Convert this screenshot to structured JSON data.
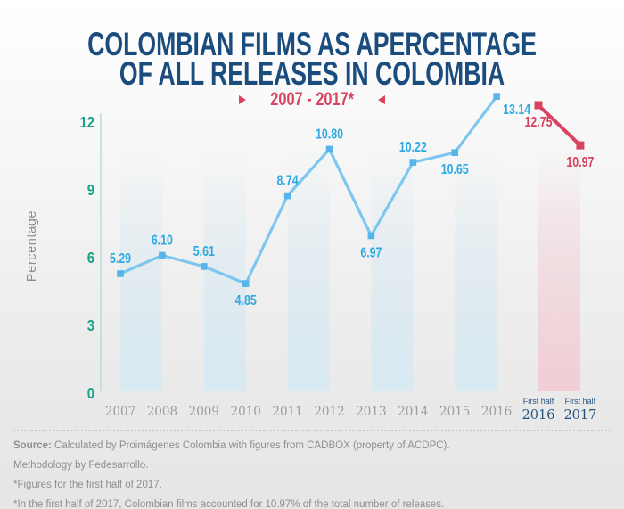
{
  "header": {
    "title_line1": "COLOMBIAN FILMS AS APERCENTAGE",
    "title_line2": "OF ALL RELEASES IN COLOMBIA",
    "title_color": "#1b4c7e",
    "subtitle": "2007 - 2017*",
    "subtitle_color": "#d8445f"
  },
  "chart_data": {
    "type": "line",
    "title": "COLOMBIAN FILMS AS APERCENTAGE OF ALL RELEASES IN COLOMBIA",
    "period_label": "2007 - 2017*",
    "ylabel": "Percentage",
    "y_ticks": [
      0,
      3,
      6,
      9,
      12
    ],
    "ylim": [
      0,
      13.5
    ],
    "grid": false,
    "legend": "none",
    "series": [
      {
        "name": "full-year-percentage",
        "categories": [
          "2007",
          "2008",
          "2009",
          "2010",
          "2011",
          "2012",
          "2013",
          "2014",
          "2015",
          "2016"
        ],
        "values": [
          5.29,
          6.1,
          5.61,
          4.85,
          8.74,
          10.8,
          6.97,
          10.22,
          10.65,
          13.14
        ],
        "labels": [
          "5.29",
          "6.10",
          "5.61",
          "4.85",
          "8.74",
          "10.80",
          "6.97",
          "10.22",
          "10.65",
          "13.14"
        ],
        "label_pos": [
          "above",
          "above",
          "above",
          "below",
          "above",
          "above",
          "below",
          "above",
          "below",
          "right-below"
        ],
        "line_color": "#7cc7f0",
        "marker_color": "#55b5ea",
        "label_color": "#2fa9e1"
      },
      {
        "name": "first-half-percentage",
        "categories": [
          {
            "line1": "First half",
            "line2": "2016"
          },
          {
            "line1": "First half",
            "line2": "2017"
          }
        ],
        "values": [
          12.75,
          10.97
        ],
        "labels": [
          "12.75",
          "10.97"
        ],
        "label_pos": [
          "below",
          "below"
        ],
        "line_color": "#d8445f",
        "marker_color": "#d8445f",
        "label_color": "#d8445f"
      }
    ],
    "stripe_color_blue": "#d8e9f2",
    "stripe_color_pink": "#f1ced5",
    "axis_line_color": "#b7dcd2",
    "tick_color": "#18a287",
    "year_label_color": "#9b9b9b",
    "half_year_label_color": "#27547f"
  },
  "footer": {
    "source_bold": "Source:",
    "source_text": " Calculated by Proimágenes Colombia with figures from CADBOX (property of ACDPC).",
    "line2": "Methodology by Fedesarrollo.",
    "line3": "*Figures for the first half of 2017.",
    "line4": "*In the first half of 2017, Colombian films accounted for 10.97% of the total number of releases."
  }
}
